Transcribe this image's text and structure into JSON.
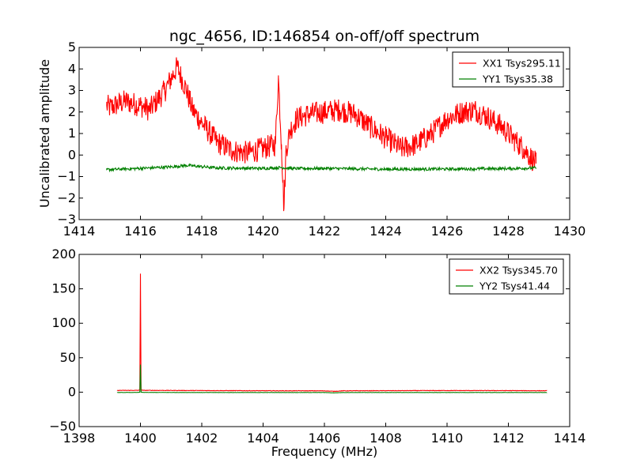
{
  "title": "ngc_4656, ID:146854 on-off/off spectrum",
  "chart_data": [
    {
      "type": "line",
      "title": "ngc_4656, ID:146854 on-off/off spectrum",
      "xlabel": "",
      "ylabel": "Uncalibrated amplitude",
      "xlim": [
        1414,
        1430
      ],
      "ylim": [
        -3,
        5
      ],
      "xticks": [
        1414,
        1416,
        1418,
        1420,
        1422,
        1424,
        1426,
        1428,
        1430
      ],
      "yticks": [
        -3,
        -2,
        -1,
        0,
        1,
        2,
        3,
        4,
        5
      ],
      "legend_position": "top-right",
      "series": [
        {
          "name": "XX1 Tsys295.11",
          "color": "#ff0000",
          "x": [
            1414.9,
            1415.0,
            1415.5,
            1416.0,
            1416.3,
            1416.8,
            1417.2,
            1417.5,
            1417.7,
            1418.0,
            1418.5,
            1419.0,
            1419.5,
            1420.0,
            1420.4,
            1420.5,
            1420.6,
            1420.68,
            1420.75,
            1420.9,
            1421.1,
            1421.5,
            1422.0,
            1422.5,
            1423.0,
            1423.5,
            1424.0,
            1424.5,
            1425.0,
            1425.5,
            1426.0,
            1426.5,
            1426.9,
            1427.3,
            1427.8,
            1428.2,
            1428.5,
            1428.9
          ],
          "y": [
            2.3,
            2.2,
            2.5,
            2.3,
            2.1,
            3.0,
            4.1,
            3.0,
            2.1,
            1.5,
            0.6,
            0.2,
            0.1,
            0.3,
            0.5,
            3.6,
            0.5,
            -2.5,
            0.3,
            1.2,
            1.7,
            1.9,
            2.0,
            2.1,
            1.9,
            1.3,
            0.8,
            0.3,
            0.5,
            1.0,
            1.7,
            2.0,
            2.1,
            1.8,
            1.3,
            0.7,
            0.3,
            -0.4
          ]
        },
        {
          "name": "YY1 Tsys35.38",
          "color": "#008000",
          "x": [
            1414.9,
            1416.0,
            1417.0,
            1417.5,
            1418.5,
            1420.0,
            1420.6,
            1421.0,
            1422.0,
            1424.0,
            1426.0,
            1428.0,
            1428.9
          ],
          "y": [
            -0.68,
            -0.62,
            -0.55,
            -0.48,
            -0.6,
            -0.62,
            -0.58,
            -0.63,
            -0.62,
            -0.66,
            -0.65,
            -0.63,
            -0.6
          ]
        }
      ]
    },
    {
      "type": "line",
      "title": "",
      "xlabel": "Frequency (MHz)",
      "ylabel": "",
      "xlim": [
        1398,
        1414
      ],
      "ylim": [
        -50,
        200
      ],
      "xticks": [
        1398,
        1400,
        1402,
        1404,
        1406,
        1408,
        1410,
        1412,
        1414
      ],
      "yticks": [
        -50,
        0,
        50,
        100,
        150,
        200
      ],
      "legend_position": "top-right",
      "series": [
        {
          "name": "XX2 Tsys345.70",
          "color": "#ff0000",
          "x": [
            1399.25,
            1399.9,
            1399.98,
            1400.0,
            1400.02,
            1400.1,
            1402.0,
            1404.0,
            1406.0,
            1406.3,
            1406.6,
            1408.0,
            1410.0,
            1412.0,
            1413.25
          ],
          "y": [
            2.5,
            2.6,
            3.0,
            172.0,
            3.0,
            2.6,
            2.3,
            2.0,
            1.9,
            1.2,
            1.9,
            2.1,
            2.3,
            2.2,
            2.0
          ]
        },
        {
          "name": "YY2 Tsys41.44",
          "color": "#008000",
          "x": [
            1399.25,
            1399.9,
            1399.98,
            1400.0,
            1400.02,
            1400.1,
            1402.0,
            1404.0,
            1406.0,
            1406.3,
            1406.6,
            1408.0,
            1410.0,
            1412.0,
            1413.25
          ],
          "y": [
            -0.5,
            -0.4,
            0.0,
            40.0,
            0.0,
            -0.4,
            -0.5,
            -0.5,
            -0.5,
            -1.0,
            -0.5,
            -0.5,
            -0.5,
            -0.5,
            -0.5
          ]
        }
      ]
    }
  ]
}
